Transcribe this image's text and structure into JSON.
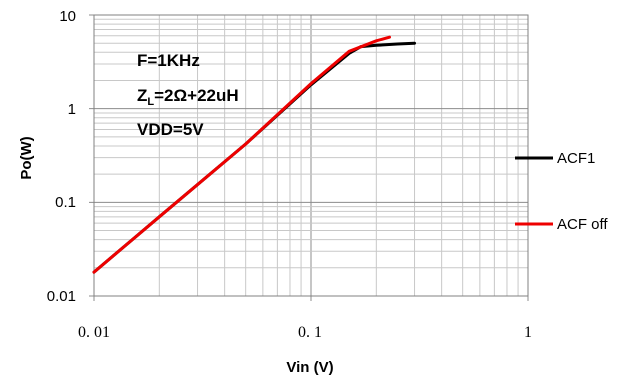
{
  "chart_data": {
    "type": "line",
    "xlabel": "Vin (V)",
    "ylabel": "Po(W)",
    "x_scale": "log",
    "y_scale": "log",
    "xlim": [
      0.01,
      1
    ],
    "ylim": [
      0.01,
      10
    ],
    "x_ticks": [
      "0. 01",
      "0. 1",
      "1"
    ],
    "y_ticks": [
      "10",
      "1",
      "0.1",
      "0.01"
    ],
    "grid": true,
    "legend_placement": "right",
    "annotations": {
      "line1": "F=1KHz",
      "line2_main": "Z",
      "line2_sub": "L",
      "line2_rest": "=2Ω+22uH",
      "line3": "VDD=5V"
    },
    "series": [
      {
        "name": "ACF1",
        "color": "#000000",
        "x": [
          0.01,
          0.02,
          0.05,
          0.1,
          0.15,
          0.17,
          0.2,
          0.25,
          0.3
        ],
        "y": [
          0.018,
          0.07,
          0.42,
          1.8,
          3.9,
          4.6,
          4.75,
          4.9,
          5.0
        ]
      },
      {
        "name": "ACF off",
        "color": "#ee0000",
        "x": [
          0.01,
          0.02,
          0.05,
          0.1,
          0.15,
          0.2,
          0.23
        ],
        "y": [
          0.018,
          0.07,
          0.42,
          1.85,
          4.1,
          5.3,
          5.8
        ]
      }
    ]
  }
}
